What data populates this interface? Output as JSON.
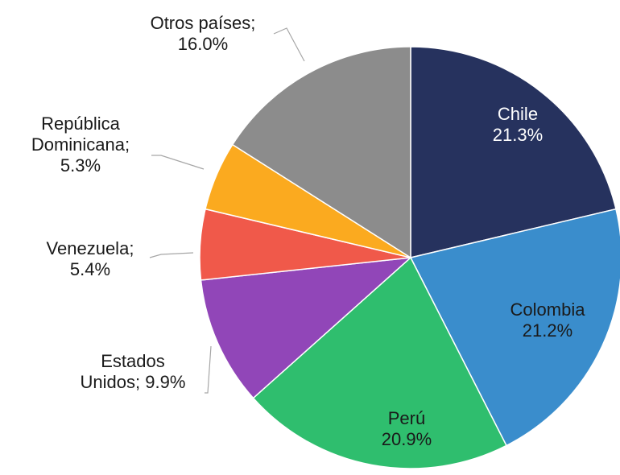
{
  "chart_data": {
    "type": "pie",
    "categories": [
      "Chile",
      "Colombia",
      "Perú",
      "Estados Unidos",
      "Venezuela",
      "República Dominicana",
      "Otros países"
    ],
    "values": [
      21.3,
      21.2,
      20.9,
      9.9,
      5.4,
      5.3,
      16.0
    ],
    "value_labels": [
      "21.3%",
      "21.2%",
      "20.9%",
      "9.9%",
      "5.4%",
      "5.3%",
      "16.0%"
    ],
    "label_separator": ";",
    "colors": [
      "#26325e",
      "#3a8dcc",
      "#2fbe6e",
      "#9146b8",
      "#f0594a",
      "#fbaa1f",
      "#8c8c8c"
    ]
  }
}
